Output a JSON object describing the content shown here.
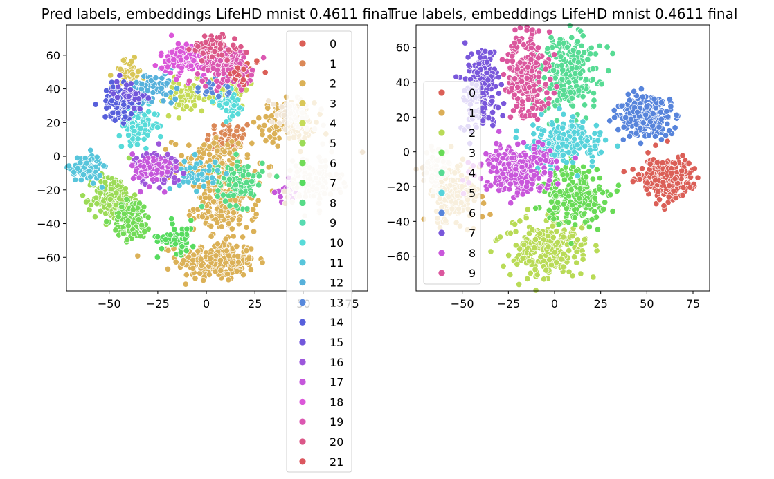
{
  "chart_data": [
    {
      "type": "scatter",
      "title": "Pred labels, embeddings LifeHD mnist 0.4611 final",
      "xlabel": "",
      "ylabel": "",
      "xlim": [
        -72,
        83
      ],
      "ylim": [
        -80,
        78
      ],
      "xticks": [
        -50,
        -25,
        0,
        25,
        50,
        75
      ],
      "yticks": [
        -60,
        -40,
        -20,
        0,
        20,
        40,
        60
      ],
      "grid": false,
      "legend_placement": "right, overflowing below axes",
      "legend": [
        {
          "label": "0",
          "color": "#db5f57"
        },
        {
          "label": "1",
          "color": "#db8857"
        },
        {
          "label": "2",
          "color": "#dbb157"
        },
        {
          "label": "3",
          "color": "#d9c657"
        },
        {
          "label": "4",
          "color": "#c5db57"
        },
        {
          "label": "5",
          "color": "#9cdb57"
        },
        {
          "label": "6",
          "color": "#72db57"
        },
        {
          "label": "7",
          "color": "#57db5f"
        },
        {
          "label": "8",
          "color": "#57db88"
        },
        {
          "label": "9",
          "color": "#57dbb1"
        },
        {
          "label": "10",
          "color": "#57dbd9"
        },
        {
          "label": "11",
          "color": "#57c5db"
        },
        {
          "label": "12",
          "color": "#57b1db"
        },
        {
          "label": "13",
          "color": "#5788db"
        },
        {
          "label": "14",
          "color": "#575fdb"
        },
        {
          "label": "15",
          "color": "#7257db"
        },
        {
          "label": "16",
          "color": "#9c57db"
        },
        {
          "label": "17",
          "color": "#c557db"
        },
        {
          "label": "18",
          "color": "#db57d9"
        },
        {
          "label": "19",
          "color": "#db57b1"
        },
        {
          "label": "20",
          "color": "#db5788"
        },
        {
          "label": "21",
          "color": "#db575f"
        }
      ],
      "clusters": [
        {
          "label": "0",
          "x": 22,
          "y": 52,
          "sx": 3,
          "sy": 3,
          "n": 10
        },
        {
          "label": "1",
          "x": 12,
          "y": 10,
          "sx": 6,
          "sy": 6,
          "n": 50
        },
        {
          "label": "2",
          "x": 5,
          "y": -62,
          "sx": 10,
          "sy": 6,
          "n": 220
        },
        {
          "label": "2",
          "x": 42,
          "y": 20,
          "sx": 7,
          "sy": 6,
          "n": 130
        },
        {
          "label": "2",
          "x": 10,
          "y": -30,
          "sx": 8,
          "sy": 7,
          "n": 160
        },
        {
          "label": "2",
          "x": 3,
          "y": -5,
          "sx": 10,
          "sy": 8,
          "n": 150
        },
        {
          "label": "3",
          "x": -40,
          "y": 50,
          "sx": 4,
          "sy": 4,
          "n": 45
        },
        {
          "label": "4",
          "x": -10,
          "y": 35,
          "sx": 6,
          "sy": 5,
          "n": 60
        },
        {
          "label": "4",
          "x": 12,
          "y": 40,
          "sx": 5,
          "sy": 5,
          "n": 50
        },
        {
          "label": "5",
          "x": -48,
          "y": -25,
          "sx": 5,
          "sy": 7,
          "n": 160
        },
        {
          "label": "6",
          "x": -38,
          "y": -38,
          "sx": 5,
          "sy": 6,
          "n": 110
        },
        {
          "label": "7",
          "x": -15,
          "y": -48,
          "sx": 5,
          "sy": 5,
          "n": 50
        },
        {
          "label": "8",
          "x": 17,
          "y": -15,
          "sx": 6,
          "sy": 7,
          "n": 90
        },
        {
          "label": "10",
          "x": -35,
          "y": 18,
          "sx": 5,
          "sy": 5,
          "n": 90
        },
        {
          "label": "10",
          "x": 12,
          "y": 30,
          "sx": 4,
          "sy": 4,
          "n": 40
        },
        {
          "label": "11",
          "x": -62,
          "y": -7,
          "sx": 4,
          "sy": 4,
          "n": 90
        },
        {
          "label": "11",
          "x": -4,
          "y": -10,
          "sx": 5,
          "sy": 5,
          "n": 40
        },
        {
          "label": "12",
          "x": -27,
          "y": 40,
          "sx": 6,
          "sy": 5,
          "n": 70
        },
        {
          "label": "13",
          "x": 5,
          "y": 40,
          "sx": 5,
          "sy": 5,
          "n": 20
        },
        {
          "label": "14",
          "x": -45,
          "y": 32,
          "sx": 4,
          "sy": 5,
          "n": 80
        },
        {
          "label": "15",
          "x": -40,
          "y": 38,
          "sx": 4,
          "sy": 4,
          "n": 40
        },
        {
          "label": "16",
          "x": -25,
          "y": -7,
          "sx": 6,
          "sy": 5,
          "n": 70
        },
        {
          "label": "17",
          "x": -28,
          "y": -8,
          "sx": 5,
          "sy": 5,
          "n": 80
        },
        {
          "label": "17",
          "x": 42,
          "y": -20,
          "sx": 4,
          "sy": 4,
          "n": 20
        },
        {
          "label": "18",
          "x": -10,
          "y": 58,
          "sx": 7,
          "sy": 5,
          "n": 110
        },
        {
          "label": "19",
          "x": 10,
          "y": 55,
          "sx": 7,
          "sy": 6,
          "n": 150
        },
        {
          "label": "20",
          "x": 5,
          "y": 65,
          "sx": 6,
          "sy": 4,
          "n": 60
        },
        {
          "label": "21",
          "x": 15,
          "y": 48,
          "sx": 4,
          "sy": 3,
          "n": 15
        },
        {
          "label": "cream",
          "x": 55,
          "y": -15,
          "sx": 7,
          "sy": 8,
          "n": 120,
          "color": "#f1e6d6"
        },
        {
          "label": "cream",
          "x": 45,
          "y": 25,
          "sx": 6,
          "sy": 5,
          "n": 60,
          "color": "#f1e6d6"
        }
      ]
    },
    {
      "type": "scatter",
      "title": "True labels, embeddings LifeHD mnist 0.4611 final",
      "xlabel": "",
      "ylabel": "",
      "xlim": [
        -75,
        84
      ],
      "ylim": [
        -80,
        73
      ],
      "xticks": [
        -50,
        -25,
        0,
        25,
        50,
        75
      ],
      "yticks": [
        -60,
        -40,
        -20,
        0,
        20,
        40,
        60
      ],
      "grid": false,
      "legend_placement": "center-left",
      "legend": [
        {
          "label": "0",
          "color": "#db5f57"
        },
        {
          "label": "1",
          "color": "#dbae57"
        },
        {
          "label": "2",
          "color": "#b9db57"
        },
        {
          "label": "3",
          "color": "#69db57"
        },
        {
          "label": "4",
          "color": "#57db94"
        },
        {
          "label": "5",
          "color": "#57d3db"
        },
        {
          "label": "6",
          "color": "#5784db"
        },
        {
          "label": "7",
          "color": "#7957db"
        },
        {
          "label": "8",
          "color": "#c957db"
        },
        {
          "label": "9",
          "color": "#db579e"
        }
      ],
      "clusters": [
        {
          "label": "0",
          "x": 60,
          "y": -15,
          "sx": 7,
          "sy": 6,
          "n": 220
        },
        {
          "label": "1",
          "x": -55,
          "y": -25,
          "sx": 7,
          "sy": 9,
          "n": 160
        },
        {
          "label": "2",
          "x": -5,
          "y": -55,
          "sx": 12,
          "sy": 9,
          "n": 240
        },
        {
          "label": "3",
          "x": 10,
          "y": -25,
          "sx": 9,
          "sy": 9,
          "n": 220
        },
        {
          "label": "4",
          "x": 8,
          "y": 45,
          "sx": 8,
          "sy": 12,
          "n": 240
        },
        {
          "label": "5",
          "x": 5,
          "y": 5,
          "sx": 10,
          "sy": 6,
          "n": 200
        },
        {
          "label": "6",
          "x": 50,
          "y": 20,
          "sx": 8,
          "sy": 6,
          "n": 220
        },
        {
          "label": "7",
          "x": -40,
          "y": 35,
          "sx": 5,
          "sy": 12,
          "n": 190
        },
        {
          "label": "8",
          "x": -20,
          "y": -10,
          "sx": 10,
          "sy": 7,
          "n": 250
        },
        {
          "label": "9",
          "x": -15,
          "y": 45,
          "sx": 6,
          "sy": 12,
          "n": 220
        },
        {
          "label": "cream",
          "x": -65,
          "y": -10,
          "sx": 4,
          "sy": 6,
          "n": 60,
          "color": "#f1e6d6"
        }
      ]
    }
  ]
}
